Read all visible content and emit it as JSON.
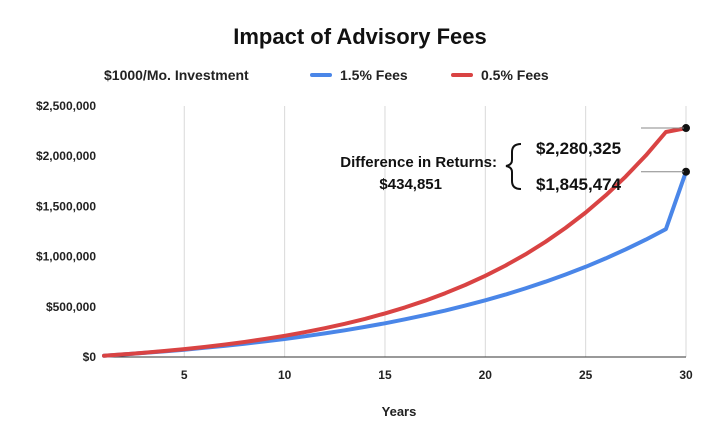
{
  "chart_data": {
    "type": "line",
    "title": "Impact of Advisory Fees",
    "subtitle": "$1000/Mo. Investment",
    "xlabel": "Years",
    "ylabel": "",
    "xlim": [
      1,
      30
    ],
    "ylim": [
      0,
      2500000
    ],
    "x_ticks": [
      5,
      10,
      15,
      20,
      25,
      30
    ],
    "y_ticks": [
      0,
      500000,
      1000000,
      1500000,
      2000000,
      2500000
    ],
    "y_tick_labels": [
      "$0",
      "$500,000",
      "$1,000,000",
      "$1,500,000",
      "$2,000,000",
      "$2,500,000"
    ],
    "grid": "vertical",
    "legend": "top",
    "x": [
      1,
      2,
      3,
      4,
      5,
      6,
      7,
      8,
      9,
      10,
      11,
      12,
      13,
      14,
      15,
      16,
      17,
      18,
      19,
      20,
      21,
      22,
      23,
      24,
      25,
      26,
      27,
      28,
      29,
      30
    ],
    "series": [
      {
        "name": "1.5% Fees",
        "color": "#4a86e8",
        "values": [
          12460,
          25900,
          40400,
          56050,
          72950,
          91200,
          110900,
          132100,
          155000,
          179750,
          206450,
          235250,
          266300,
          299850,
          336000,
          375050,
          417150,
          462600,
          511650,
          564550,
          621650,
          683250,
          749700,
          821400,
          898750,
          982250,
          1072300,
          1169500,
          1274350,
          1845474
        ]
      },
      {
        "name": "0.5% Fees",
        "color": "#d94343",
        "values": [
          12650,
          26700,
          42300,
          59600,
          78800,
          100000,
          123600,
          149800,
          178900,
          211100,
          246900,
          286600,
          330700,
          379600,
          433900,
          494100,
          560900,
          635100,
          717400,
          808700,
          910000,
          1022400,
          1147100,
          1285500,
          1439100,
          1609500,
          1798600,
          2008400,
          2241200,
          2280325
        ]
      }
    ],
    "annotations": {
      "difference_line1": "Difference in Returns:",
      "difference_line2": "$434,851",
      "high_label": "$2,280,325",
      "low_label": "$1,845,474"
    },
    "legend_bullet": "•",
    "legend_labels": [
      "1.5% Fees",
      "0.5% Fees"
    ]
  }
}
